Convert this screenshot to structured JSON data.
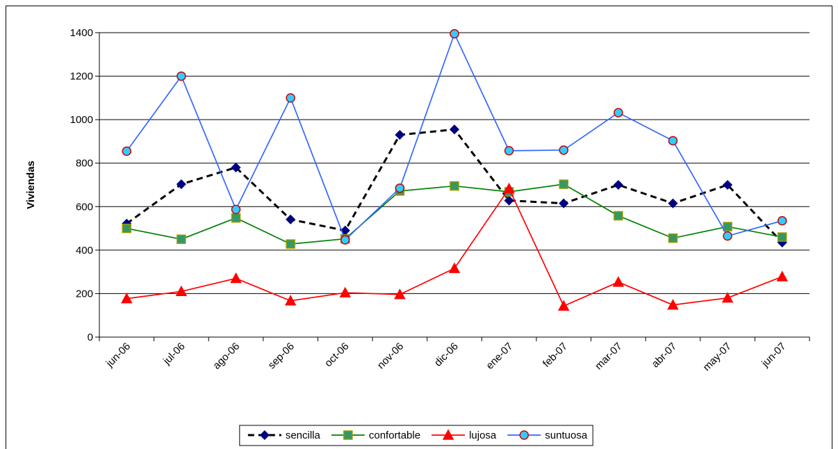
{
  "chart_data": {
    "type": "line",
    "y_label": "Viviendas",
    "categories": [
      "jun-06",
      "jul-06",
      "ago-06",
      "sep-06",
      "oct-06",
      "nov-06",
      "dic-06",
      "ene-07",
      "feb-07",
      "mar-07",
      "abr-07",
      "may-07",
      "jun-07"
    ],
    "series": [
      {
        "name": "sencilla",
        "color": "#000000",
        "dash": true,
        "marker": "diamond",
        "marker_fill": "#000080",
        "marker_stroke": "#000080",
        "values": [
          522,
          703,
          780,
          541,
          490,
          930,
          955,
          628,
          615,
          700,
          615,
          700,
          435
        ]
      },
      {
        "name": "confortable",
        "color": "#008000",
        "dash": false,
        "marker": "square",
        "marker_fill": "#339966",
        "marker_stroke": "#999900",
        "values": [
          500,
          450,
          548,
          428,
          452,
          672,
          695,
          668,
          703,
          558,
          455,
          508,
          460
        ]
      },
      {
        "name": "lujosa",
        "color": "#ff0000",
        "dash": false,
        "marker": "triangle",
        "marker_fill": "#ff0000",
        "marker_stroke": "#ff0000",
        "values": [
          177,
          210,
          270,
          167,
          204,
          196,
          316,
          683,
          143,
          253,
          148,
          180,
          278
        ]
      },
      {
        "name": "suntuosa",
        "color": "#3366ff",
        "dash": false,
        "marker": "circle",
        "marker_fill": "#33ccff",
        "marker_stroke": "#cc0000",
        "values": [
          855,
          1200,
          587,
          1100,
          447,
          685,
          1395,
          857,
          860,
          1032,
          903,
          465,
          535
        ]
      }
    ],
    "ylim": [
      0,
      1400
    ],
    "yticks": [
      0,
      200,
      400,
      600,
      800,
      1000,
      1200,
      1400
    ],
    "grid": true,
    "legend": "bottom"
  }
}
